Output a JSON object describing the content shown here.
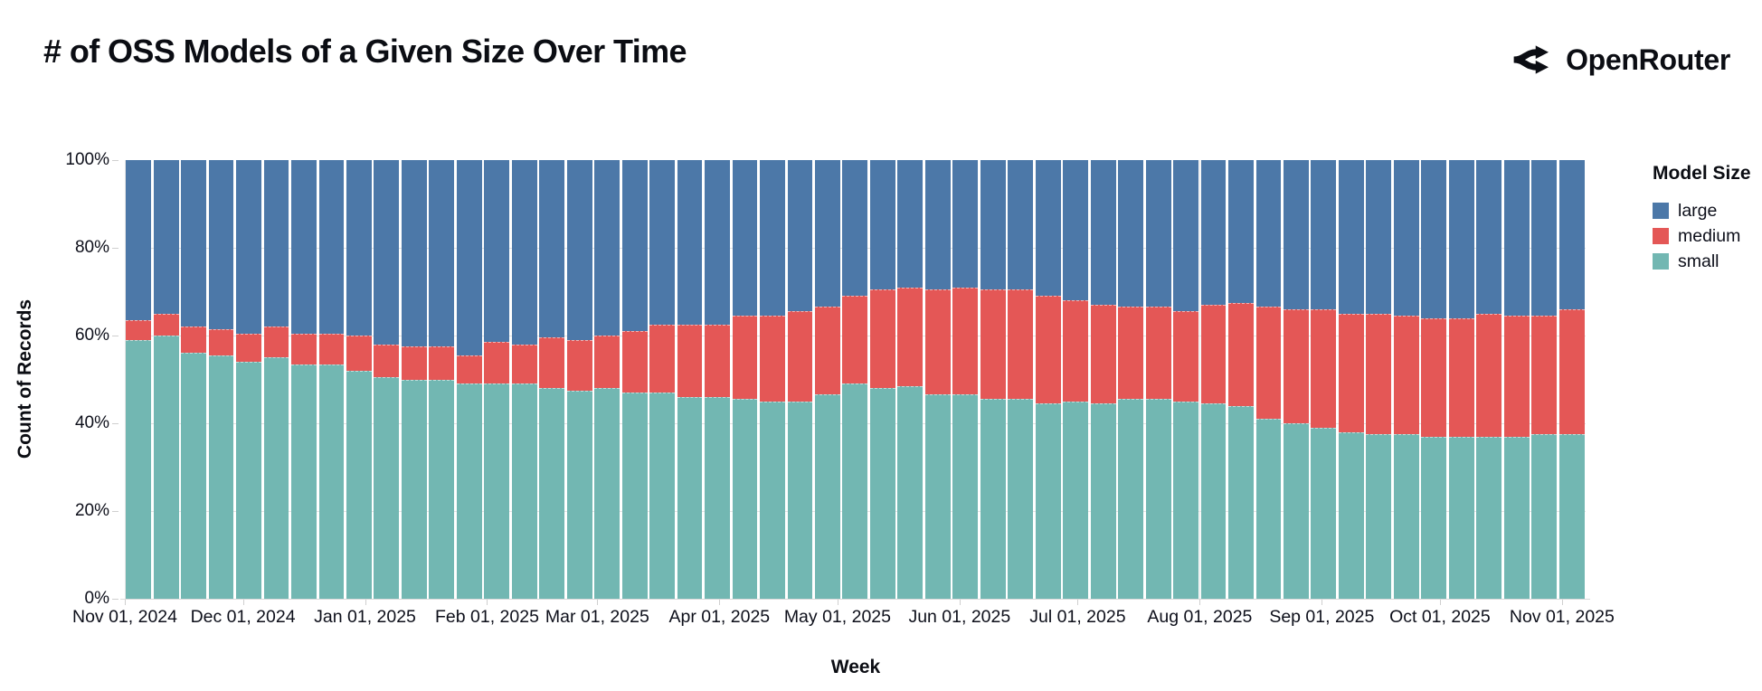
{
  "header": {
    "title": "# of OSS Models of a Given Size Over Time",
    "brand": "OpenRouter"
  },
  "legend": {
    "title": "Model Size",
    "items": [
      {
        "label": "large",
        "color": "#4c78a8"
      },
      {
        "label": "medium",
        "color": "#e45756"
      },
      {
        "label": "small",
        "color": "#72b7b2"
      }
    ]
  },
  "chart_data": {
    "type": "bar",
    "stacked": "normalized-100%",
    "title": "# of OSS Models of a Given Size Over Time",
    "xlabel": "Week",
    "ylabel": "Count of Records",
    "ylim": [
      0,
      100
    ],
    "grid": true,
    "legend_position": "right",
    "weeks": 53,
    "x_tick_labels": [
      "Nov 01, 2024",
      "Dec 01, 2024",
      "Jan 01, 2025",
      "Feb 01, 2025",
      "Mar 01, 2025",
      "Apr 01, 2025",
      "May 01, 2025",
      "Jun 01, 2025",
      "Jul 01, 2025",
      "Aug 01, 2025",
      "Sep 01, 2025",
      "Oct 01, 2025",
      "Nov 01, 2025"
    ],
    "y_tick_labels": [
      "0%",
      "20%",
      "40%",
      "60%",
      "80%",
      "100%"
    ],
    "series": [
      {
        "name": "small",
        "color": "#72b7b2",
        "values": [
          59,
          60,
          56,
          55.5,
          54,
          55,
          53.5,
          53.5,
          52,
          50.5,
          50,
          50,
          49,
          49,
          49,
          48,
          47.5,
          48,
          47,
          47,
          46,
          46,
          45.5,
          45,
          45,
          46.5,
          49,
          48,
          48.5,
          46.5,
          46.5,
          45.5,
          45.5,
          44.5,
          45,
          44.5,
          45.5,
          45.5,
          45,
          44.5,
          44,
          41,
          40,
          39,
          38,
          37.5,
          37.5,
          37,
          37,
          37,
          37,
          37.5,
          37.5
        ]
      },
      {
        "name": "medium",
        "color": "#e45756",
        "values": [
          4.5,
          5,
          6,
          6,
          6.5,
          7,
          7,
          7,
          8,
          7.5,
          7.5,
          7.5,
          6.5,
          9.5,
          9,
          11.5,
          11.5,
          12,
          14,
          15.5,
          16.5,
          16.5,
          19,
          19.5,
          20.5,
          20,
          20,
          22.5,
          22.5,
          24,
          24.5,
          25,
          25,
          24.5,
          23,
          22.5,
          21,
          21,
          20.5,
          22.5,
          23.5,
          25.5,
          26,
          27,
          27,
          27.5,
          27,
          27,
          27,
          28,
          27.5,
          27,
          28.5
        ]
      },
      {
        "name": "large",
        "color": "#4c78a8",
        "values": [
          36.5,
          35,
          38,
          38.5,
          39.5,
          38,
          39.5,
          39.5,
          40,
          42,
          42.5,
          42.5,
          44.5,
          41.5,
          42,
          40.5,
          41,
          40,
          39,
          37.5,
          37.5,
          37.5,
          35.5,
          35.5,
          34.5,
          33.5,
          31,
          29.5,
          29,
          29.5,
          29,
          29.5,
          29.5,
          31,
          32,
          33,
          33.5,
          33.5,
          34.5,
          33,
          32.5,
          33.5,
          34,
          34,
          35,
          35,
          35.5,
          36,
          36,
          35,
          35.5,
          35.5,
          34
        ]
      }
    ]
  }
}
